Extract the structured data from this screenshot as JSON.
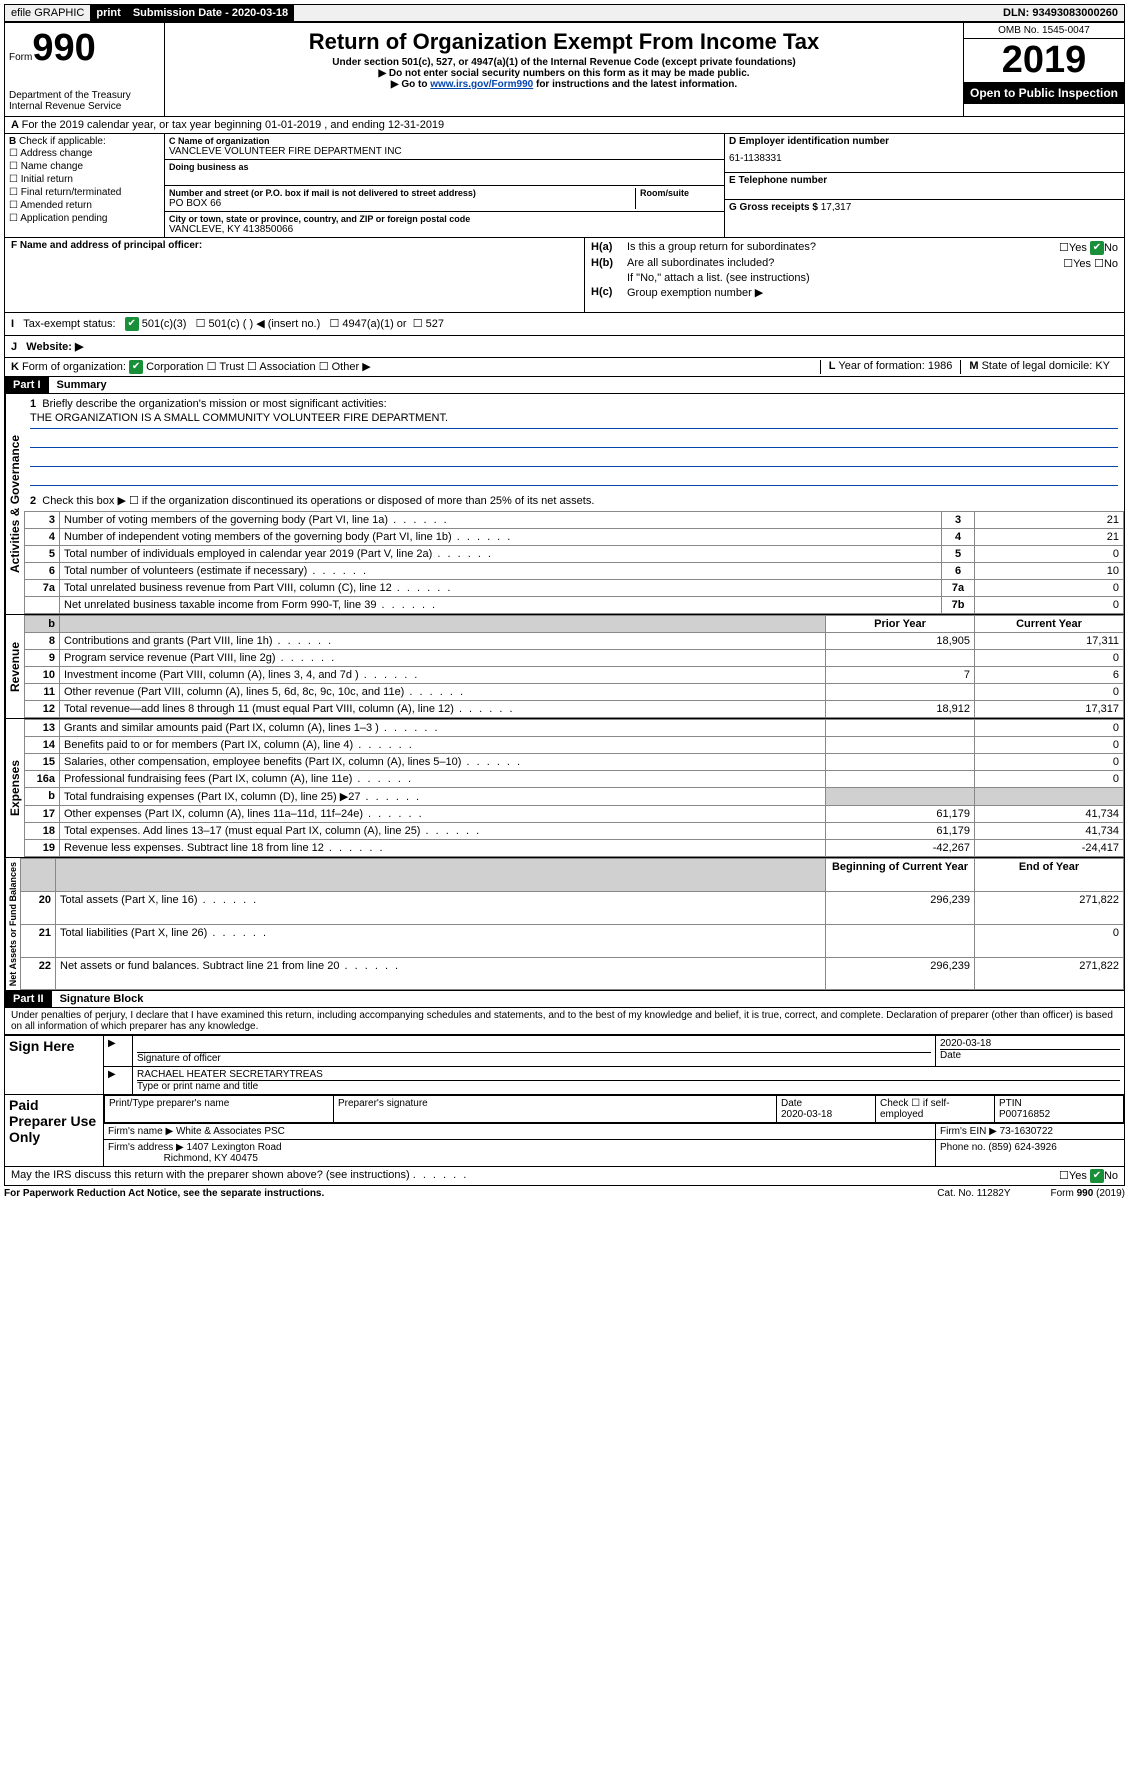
{
  "topbar": {
    "efile": "efile GRAPHIC",
    "print": "print",
    "subdate_label": "Submission Date - 2020-03-18",
    "dln": "DLN: 93493083000260"
  },
  "header": {
    "form_word": "Form",
    "form_num": "990",
    "dept": "Department of the Treasury\nInternal Revenue Service",
    "title": "Return of Organization Exempt From Income Tax",
    "sub1": "Under section 501(c), 527, or 4947(a)(1) of the Internal Revenue Code (except private foundations)",
    "sub2": "Do not enter social security numbers on this form as it may be made public.",
    "sub3_pre": "Go to ",
    "sub3_link": "www.irs.gov/Form990",
    "sub3_post": " for instructions and the latest information.",
    "omb": "OMB No. 1545-0047",
    "year": "2019",
    "open": "Open to Public Inspection"
  },
  "A": {
    "text": "For the 2019 calendar year, or tax year beginning 01-01-2019   , and ending 12-31-2019"
  },
  "B": {
    "label": "Check if applicable:",
    "items": [
      "Address change",
      "Name change",
      "Initial return",
      "Final return/terminated",
      "Amended return",
      "Application pending"
    ]
  },
  "C": {
    "name_label": "C Name of organization",
    "name": "VANCLEVE VOLUNTEER FIRE DEPARTMENT INC",
    "dba_label": "Doing business as",
    "addr_label": "Number and street (or P.O. box if mail is not delivered to street address)",
    "room_label": "Room/suite",
    "addr": "PO BOX 66",
    "city_label": "City or town, state or province, country, and ZIP or foreign postal code",
    "city": "VANCLEVE, KY  413850066"
  },
  "D": {
    "label": "D Employer identification number",
    "value": "61-1138331"
  },
  "E": {
    "label": "E Telephone number",
    "value": ""
  },
  "G": {
    "label": "G Gross receipts $",
    "value": "17,317"
  },
  "F": {
    "label": "F  Name and address of principal officer:"
  },
  "H": {
    "a": "Is this a group return for subordinates?",
    "b": "Are all subordinates included?",
    "bnote": "If \"No,\" attach a list. (see instructions)",
    "c": "Group exemption number ▶",
    "yes": "Yes",
    "no": "No"
  },
  "I": {
    "label": "Tax-exempt status:",
    "o1": "501(c)(3)",
    "o2": "501(c) (  ) ◀ (insert no.)",
    "o3": "4947(a)(1) or",
    "o4": "527"
  },
  "J": {
    "label": "Website: ▶"
  },
  "K": {
    "label": "Form of organization:",
    "o1": "Corporation",
    "o2": "Trust",
    "o3": "Association",
    "o4": "Other ▶"
  },
  "L": {
    "label": "Year of formation:",
    "value": "1986"
  },
  "M": {
    "label": "State of legal domicile:",
    "value": "KY"
  },
  "part1": {
    "bar": "Part I",
    "title": "Summary"
  },
  "summary": {
    "line1_label": "Briefly describe the organization's mission or most significant activities:",
    "line1_text": "THE ORGANIZATION IS A SMALL COMMUNITY VOLUNTEER FIRE DEPARTMENT.",
    "line2": "Check this box ▶ ☐  if the organization discontinued its operations or disposed of more than 25% of its net assets.",
    "rows_small": [
      {
        "n": "3",
        "t": "Number of voting members of the governing body (Part VI, line 1a)",
        "box": "3",
        "v": "21"
      },
      {
        "n": "4",
        "t": "Number of independent voting members of the governing body (Part VI, line 1b)",
        "box": "4",
        "v": "21"
      },
      {
        "n": "5",
        "t": "Total number of individuals employed in calendar year 2019 (Part V, line 2a)",
        "box": "5",
        "v": "0"
      },
      {
        "n": "6",
        "t": "Total number of volunteers (estimate if necessary)",
        "box": "6",
        "v": "10"
      },
      {
        "n": "7a",
        "t": "Total unrelated business revenue from Part VIII, column (C), line 12",
        "box": "7a",
        "v": "0"
      },
      {
        "n": "",
        "t": "Net unrelated business taxable income from Form 990-T, line 39",
        "box": "7b",
        "v": "0"
      }
    ],
    "col_prior": "Prior Year",
    "col_current": "Current Year",
    "col_begin": "Beginning of Current Year",
    "col_end": "End of Year",
    "revenue": [
      {
        "n": "8",
        "t": "Contributions and grants (Part VIII, line 1h)",
        "p": "18,905",
        "c": "17,311"
      },
      {
        "n": "9",
        "t": "Program service revenue (Part VIII, line 2g)",
        "p": "",
        "c": "0"
      },
      {
        "n": "10",
        "t": "Investment income (Part VIII, column (A), lines 3, 4, and 7d )",
        "p": "7",
        "c": "6"
      },
      {
        "n": "11",
        "t": "Other revenue (Part VIII, column (A), lines 5, 6d, 8c, 9c, 10c, and 11e)",
        "p": "",
        "c": "0"
      },
      {
        "n": "12",
        "t": "Total revenue—add lines 8 through 11 (must equal Part VIII, column (A), line 12)",
        "p": "18,912",
        "c": "17,317"
      }
    ],
    "expenses": [
      {
        "n": "13",
        "t": "Grants and similar amounts paid (Part IX, column (A), lines 1–3 )",
        "p": "",
        "c": "0"
      },
      {
        "n": "14",
        "t": "Benefits paid to or for members (Part IX, column (A), line 4)",
        "p": "",
        "c": "0"
      },
      {
        "n": "15",
        "t": "Salaries, other compensation, employee benefits (Part IX, column (A), lines 5–10)",
        "p": "",
        "c": "0"
      },
      {
        "n": "16a",
        "t": "Professional fundraising fees (Part IX, column (A), line 11e)",
        "p": "",
        "c": "0"
      },
      {
        "n": "b",
        "t": "Total fundraising expenses (Part IX, column (D), line 25) ▶27",
        "p": "SHADE",
        "c": "SHADE"
      },
      {
        "n": "17",
        "t": "Other expenses (Part IX, column (A), lines 11a–11d, 11f–24e)",
        "p": "61,179",
        "c": "41,734"
      },
      {
        "n": "18",
        "t": "Total expenses. Add lines 13–17 (must equal Part IX, column (A), line 25)",
        "p": "61,179",
        "c": "41,734"
      },
      {
        "n": "19",
        "t": "Revenue less expenses. Subtract line 18 from line 12",
        "p": "-42,267",
        "c": "-24,417"
      }
    ],
    "netassets": [
      {
        "n": "20",
        "t": "Total assets (Part X, line 16)",
        "p": "296,239",
        "c": "271,822"
      },
      {
        "n": "21",
        "t": "Total liabilities (Part X, line 26)",
        "p": "",
        "c": "0"
      },
      {
        "n": "22",
        "t": "Net assets or fund balances. Subtract line 21 from line 20",
        "p": "296,239",
        "c": "271,822"
      }
    ]
  },
  "sidelabels": {
    "gov": "Activities & Governance",
    "rev": "Revenue",
    "exp": "Expenses",
    "net": "Net Assets or Fund Balances"
  },
  "part2": {
    "bar": "Part II",
    "title": "Signature Block"
  },
  "sig": {
    "perjury": "Under penalties of perjury, I declare that I have examined this return, including accompanying schedules and statements, and to the best of my knowledge and belief, it is true, correct, and complete. Declaration of preparer (other than officer) is based on all information of which preparer has any knowledge.",
    "signhere": "Sign Here",
    "sigoff": "Signature of officer",
    "date": "2020-03-18",
    "date_label": "Date",
    "name": "RACHAEL HEATER  SECRETARYTREAS",
    "name_label": "Type or print name and title",
    "paid": "Paid Preparer Use Only",
    "prep_name_label": "Print/Type preparer's name",
    "prep_sig_label": "Preparer's signature",
    "prep_date": "2020-03-18",
    "check_self": "Check ☐ if self-employed",
    "ptin_label": "PTIN",
    "ptin": "P00716852",
    "firm_name_label": "Firm's name    ▶",
    "firm_name": "White & Associates PSC",
    "firm_ein_label": "Firm's EIN ▶",
    "firm_ein": "73-1630722",
    "firm_addr_label": "Firm's address ▶",
    "firm_addr1": "1407 Lexington Road",
    "firm_addr2": "Richmond, KY  40475",
    "phone_label": "Phone no.",
    "phone": "(859) 624-3926",
    "discuss": "May the IRS discuss this return with the preparer shown above? (see instructions)"
  },
  "footer": {
    "pra": "For Paperwork Reduction Act Notice, see the separate instructions.",
    "cat": "Cat. No. 11282Y",
    "form": "Form 990 (2019)"
  }
}
